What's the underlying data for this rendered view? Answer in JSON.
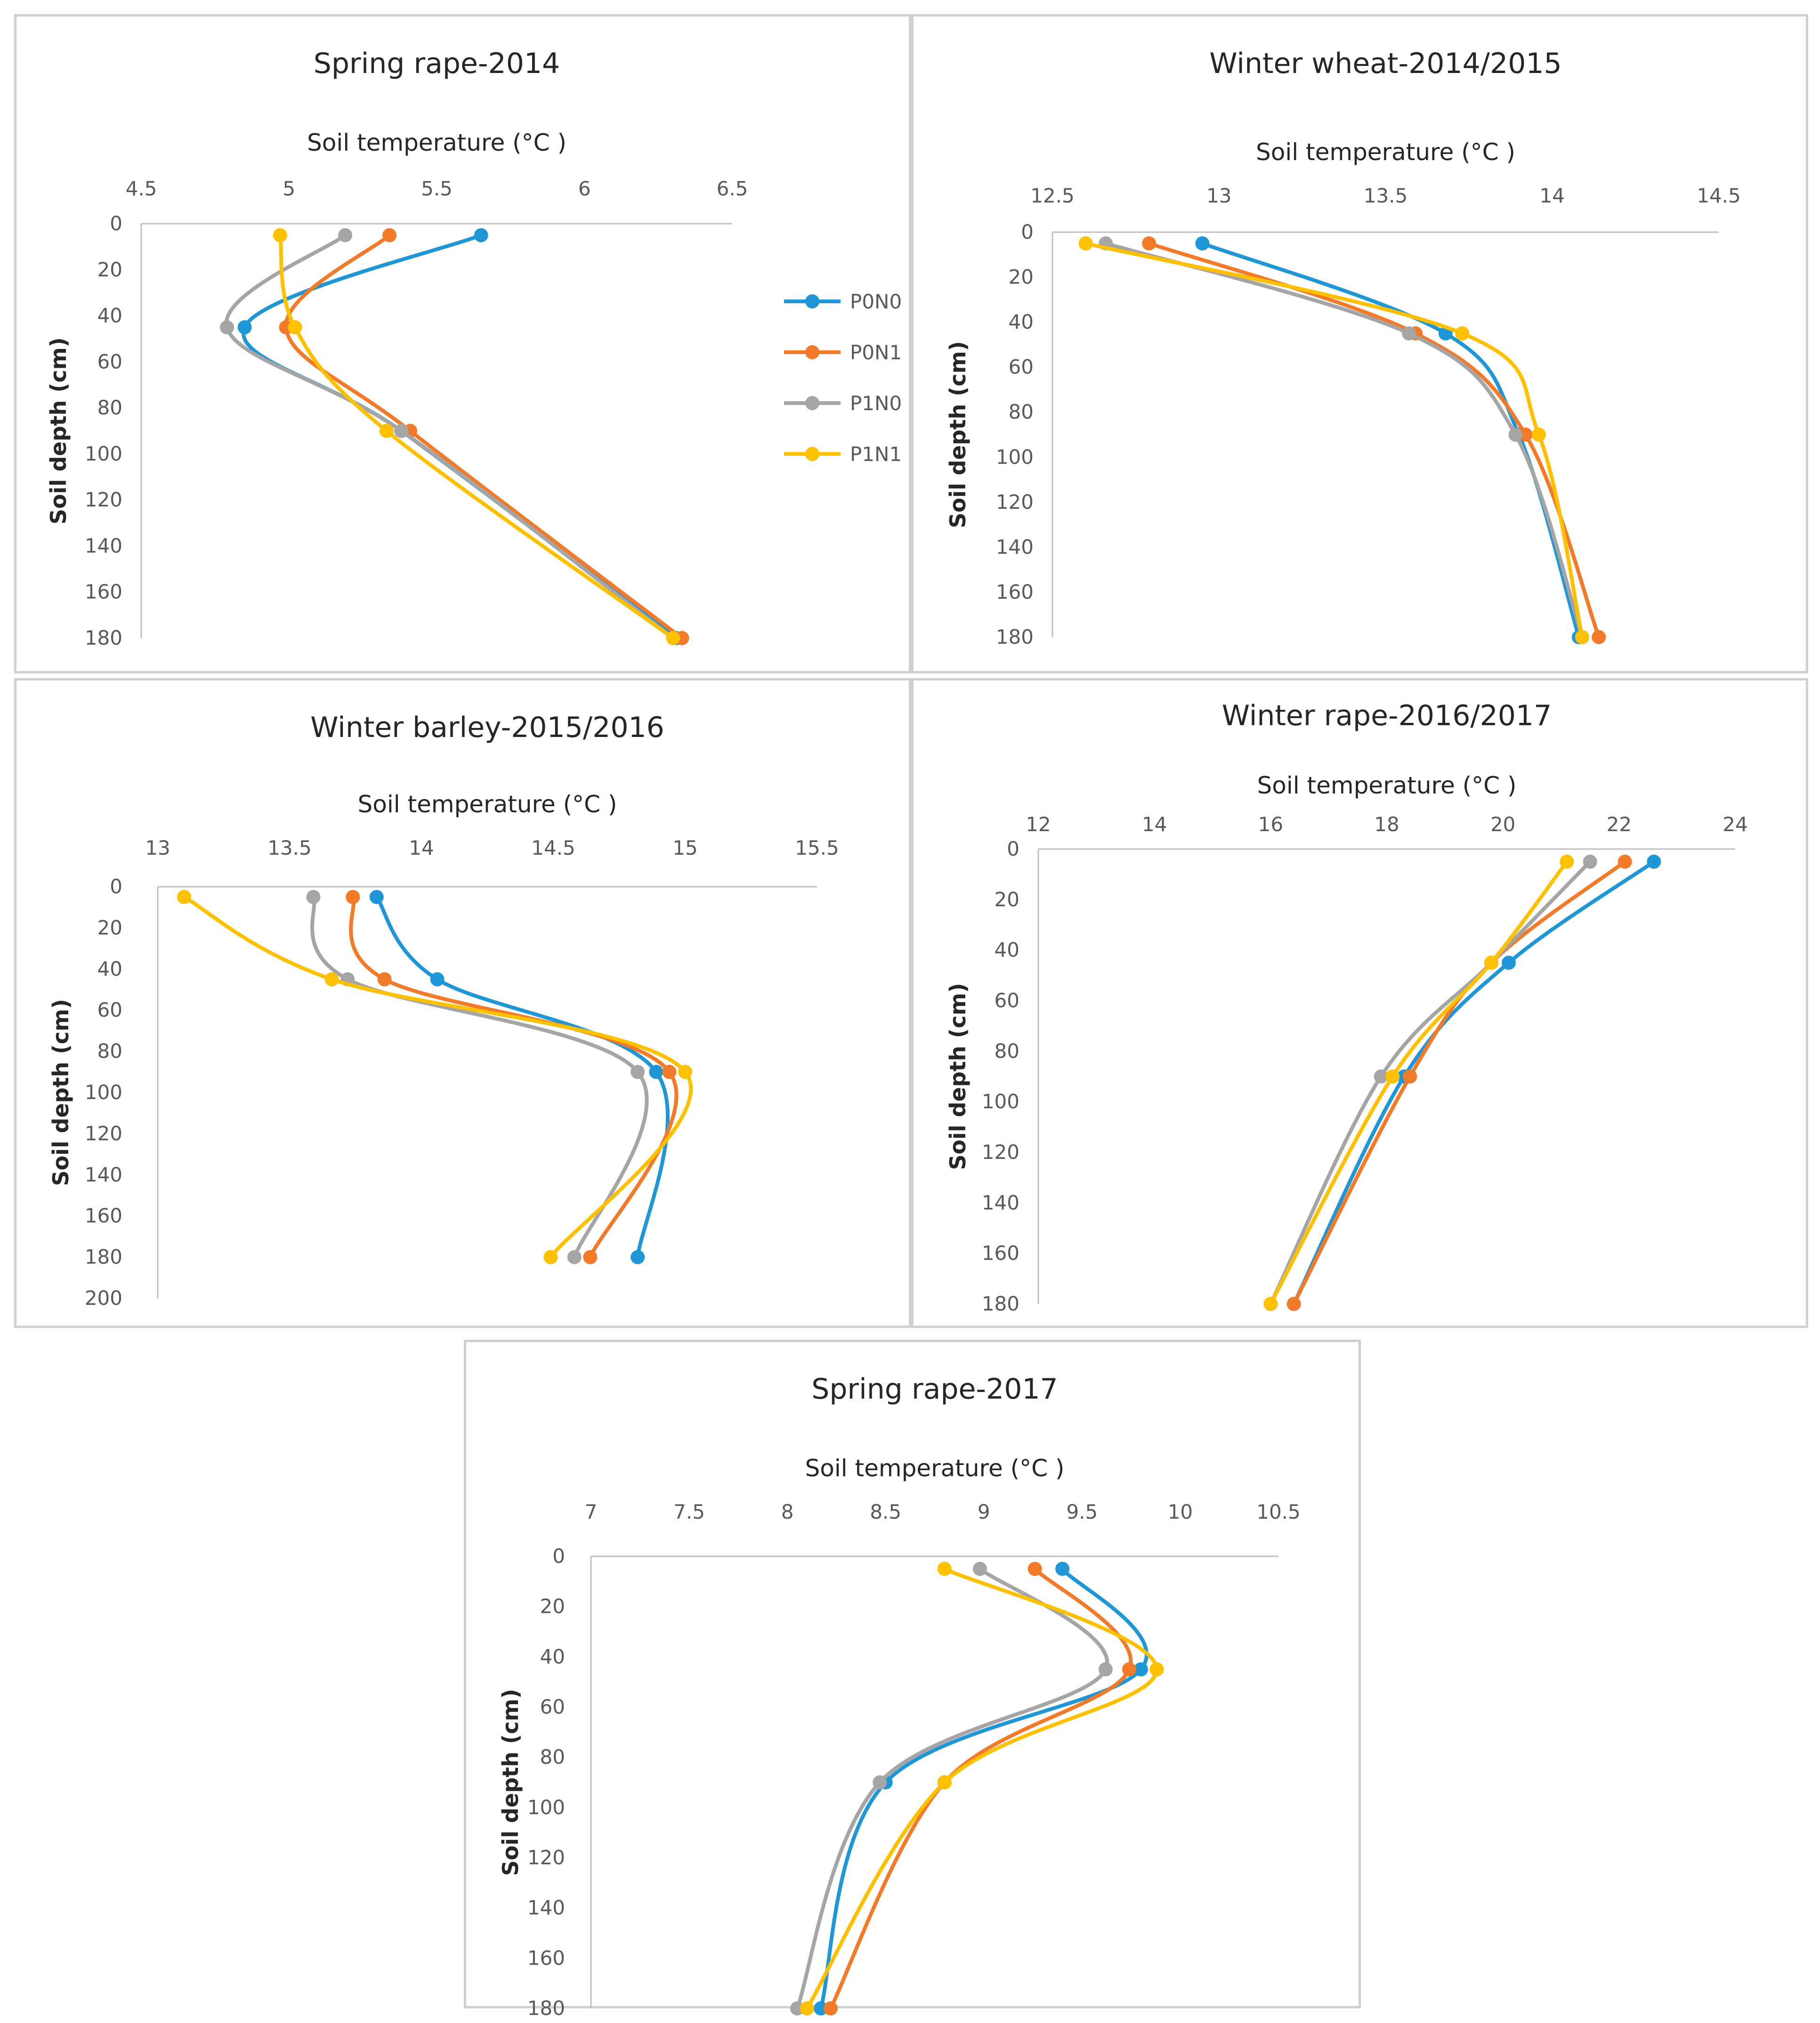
{
  "colors": {
    "P0N0": "#1f97d6",
    "P0N1": "#f37a28",
    "P1N0": "#a5a5a5",
    "P1N1": "#ffc000",
    "axis": "#bfbfbf",
    "text": "#262626"
  },
  "legend": {
    "items": [
      "P0N0",
      "P0N1",
      "P1N0",
      "P1N1"
    ]
  },
  "chart_data": [
    {
      "type": "line",
      "title": "Spring rape-2014",
      "xlabel": "Soil temperature (°C )",
      "ylabel": "Soil depth (cm)",
      "xlim": [
        4.5,
        6.5
      ],
      "xticks": [
        "4.5",
        "5",
        "5.5",
        "6",
        "6.5"
      ],
      "ylim": [
        0,
        180
      ],
      "yticks": [
        "0",
        "20",
        "40",
        "60",
        "80",
        "100",
        "120",
        "140",
        "160",
        "180"
      ],
      "depths": [
        5,
        45,
        90,
        180
      ],
      "series": [
        {
          "name": "P0N0",
          "values": [
            5.65,
            4.85,
            5.38,
            6.31
          ]
        },
        {
          "name": "P0N1",
          "values": [
            5.34,
            4.99,
            5.41,
            6.33
          ]
        },
        {
          "name": "P1N0",
          "values": [
            5.19,
            4.79,
            5.38,
            6.3
          ]
        },
        {
          "name": "P1N1",
          "values": [
            4.97,
            5.02,
            5.33,
            6.3
          ]
        }
      ]
    },
    {
      "type": "line",
      "title": "Winter wheat-2014/2015",
      "xlabel": "Soil temperature (°C )",
      "ylabel": "Soil depth (cm)",
      "xlim": [
        12.5,
        14.5
      ],
      "xticks": [
        "12.5",
        "13",
        "13.5",
        "14",
        "14.5"
      ],
      "ylim": [
        0,
        180
      ],
      "yticks": [
        "0",
        "20",
        "40",
        "60",
        "80",
        "100",
        "120",
        "140",
        "160",
        "180"
      ],
      "depths": [
        5,
        45,
        90,
        180
      ],
      "series": [
        {
          "name": "P0N0",
          "values": [
            12.95,
            13.68,
            13.9,
            14.08
          ]
        },
        {
          "name": "P0N1",
          "values": [
            12.79,
            13.59,
            13.92,
            14.14
          ]
        },
        {
          "name": "P1N0",
          "values": [
            12.66,
            13.57,
            13.89,
            14.09
          ]
        },
        {
          "name": "P1N1",
          "values": [
            12.6,
            13.73,
            13.96,
            14.09
          ]
        }
      ]
    },
    {
      "type": "line",
      "title": "Winter barley-2015/2016",
      "xlabel": "Soil temperature (°C )",
      "ylabel": "Soil depth (cm)",
      "xlim": [
        13,
        15.5
      ],
      "xticks": [
        "13",
        "13.5",
        "14",
        "14.5",
        "15",
        "15.5"
      ],
      "ylim": [
        0,
        200
      ],
      "yticks": [
        "0",
        "20",
        "40",
        "60",
        "80",
        "100",
        "120",
        "140",
        "160",
        "180",
        "200"
      ],
      "depths": [
        5,
        45,
        90,
        180
      ],
      "series": [
        {
          "name": "P0N0",
          "values": [
            13.83,
            14.06,
            14.89,
            14.82
          ]
        },
        {
          "name": "P0N1",
          "values": [
            13.74,
            13.86,
            14.94,
            14.64
          ]
        },
        {
          "name": "P1N0",
          "values": [
            13.59,
            13.72,
            14.82,
            14.58
          ]
        },
        {
          "name": "P1N1",
          "values": [
            13.1,
            13.66,
            15.0,
            14.49
          ]
        }
      ]
    },
    {
      "type": "line",
      "title": "Winter rape-2016/2017",
      "xlabel": "Soil temperature (°C )",
      "ylabel": "Soil depth (cm)",
      "xlim": [
        12,
        24
      ],
      "xticks": [
        "12",
        "14",
        "16",
        "18",
        "20",
        "22",
        "24"
      ],
      "ylim": [
        0,
        180
      ],
      "yticks": [
        "0",
        "20",
        "40",
        "60",
        "80",
        "100",
        "120",
        "140",
        "160",
        "180"
      ],
      "depths": [
        5,
        45,
        90,
        180
      ],
      "series": [
        {
          "name": "P0N0",
          "values": [
            22.6,
            20.1,
            18.3,
            16.4
          ]
        },
        {
          "name": "P0N1",
          "values": [
            22.1,
            19.8,
            18.4,
            16.4
          ]
        },
        {
          "name": "P1N0",
          "values": [
            21.5,
            19.8,
            17.9,
            16.0
          ]
        },
        {
          "name": "P1N1",
          "values": [
            21.1,
            19.8,
            18.1,
            16.0
          ]
        }
      ]
    },
    {
      "type": "line",
      "title": "Spring rape-2017",
      "xlabel": "Soil temperature (°C )",
      "ylabel": "Soil depth (cm)",
      "xlim": [
        7,
        10.5
      ],
      "xticks": [
        "7",
        "7.5",
        "8",
        "8.5",
        "9",
        "9.5",
        "10",
        "10.5"
      ],
      "ylim": [
        0,
        180
      ],
      "yticks": [
        "0",
        "20",
        "40",
        "60",
        "80",
        "100",
        "120",
        "140",
        "160",
        "180"
      ],
      "depths": [
        5,
        45,
        90,
        180
      ],
      "series": [
        {
          "name": "P0N0",
          "values": [
            9.4,
            9.8,
            8.5,
            8.17
          ]
        },
        {
          "name": "P0N1",
          "values": [
            9.26,
            9.74,
            8.8,
            8.22
          ]
        },
        {
          "name": "P1N0",
          "values": [
            8.98,
            9.62,
            8.47,
            8.05
          ]
        },
        {
          "name": "P1N1",
          "values": [
            8.8,
            9.88,
            8.8,
            8.1
          ]
        }
      ]
    }
  ]
}
